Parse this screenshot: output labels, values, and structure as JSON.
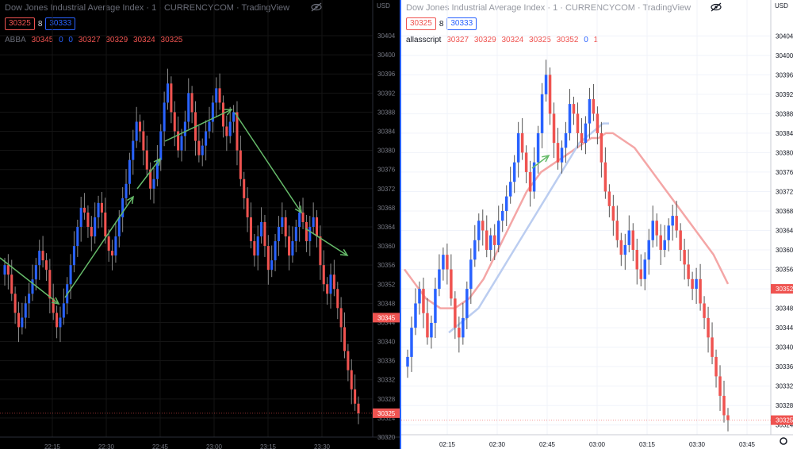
{
  "panes": [
    {
      "title": "Dow Jones Industrial Average Index · 1 · CURRENCYCOM · TradingView",
      "price_box_sell": "30325",
      "spread": "8",
      "price_box_buy": "30333",
      "study_name": "ABBA",
      "study_values": [
        "30345",
        "0",
        "0",
        "30327",
        "30329",
        "30324",
        "30325"
      ],
      "axis_unit": "USD",
      "last_price_label": "30345",
      "current_price_label": "30325",
      "theme": "dark"
    },
    {
      "title": "Dow Jones Industrial Average Index · 1 · CURRENCYCOM · TradingView",
      "price_box_sell": "30325",
      "spread": "8",
      "price_box_buy": "30333",
      "study_name": "allasscript",
      "study_values": [
        "30327",
        "30329",
        "30324",
        "30325",
        "30352",
        "0",
        "1"
      ],
      "axis_unit": "USD",
      "last_price_label": "30352",
      "current_price_label": "30325",
      "theme": "light"
    }
  ],
  "colors": {
    "up": "#2962ff",
    "down": "#ef5350",
    "light_up": "#2962ff",
    "arrow": "#66bb6a"
  },
  "chart_data": [
    {
      "type": "candlestick",
      "title": "Dow Jones Industrial Average Index · 1 · CURRENCYCOM · TradingView",
      "ylabel": "USD",
      "y_ticks": [
        30320,
        30324,
        30328,
        30332,
        30336,
        30340,
        30344,
        30348,
        30352,
        30356,
        30360,
        30364,
        30368,
        30372,
        30376,
        30380,
        30384,
        30388,
        30392,
        30396,
        30400,
        30404
      ],
      "x_ticks": [
        "22:15",
        "22:30",
        "22:45",
        "23:00",
        "23:15",
        "23:30"
      ],
      "ylim": [
        30320,
        30406
      ],
      "closes": [
        30356,
        30354,
        30350,
        30346,
        30343,
        30345,
        30348,
        30350,
        30353,
        30356,
        30359,
        30357,
        30355,
        30349,
        30346,
        30343,
        30345,
        30348,
        30352,
        30356,
        30360,
        30364,
        30368,
        30367,
        30364,
        30362,
        30366,
        30369,
        30367,
        30362,
        30359,
        30358,
        30362,
        30366,
        30370,
        30373,
        30378,
        30382,
        30386,
        30384,
        30380,
        30376,
        30372,
        30374,
        30378,
        30384,
        30390,
        30394,
        30388,
        30384,
        30380,
        30383,
        30386,
        30392,
        30388,
        30382,
        30379,
        30381,
        30384,
        30386,
        30390,
        30393,
        30390,
        30385,
        30383,
        30386,
        30388,
        30380,
        30374,
        30370,
        30366,
        30361,
        30358,
        30362,
        30365,
        30360,
        30355,
        30357,
        30361,
        30364,
        30366,
        30362,
        30358,
        30361,
        30364,
        30367,
        30365,
        30361,
        30364,
        30366,
        30362,
        30356,
        30352,
        30350,
        30354,
        30351,
        30347,
        30343,
        30338,
        30334,
        30330,
        30327,
        30325
      ],
      "annotations": [
        "green trend arrows"
      ]
    },
    {
      "type": "candlestick",
      "title": "Dow Jones Industrial Average Index · 1 · CURRENCYCOM · TradingView",
      "ylabel": "USD",
      "y_ticks": [
        30324,
        30328,
        30332,
        30336,
        30340,
        30344,
        30348,
        30352,
        30356,
        30360,
        30364,
        30368,
        30372,
        30376,
        30380,
        30384,
        30388,
        30392,
        30396,
        30400,
        30404
      ],
      "x_ticks": [
        "02:15",
        "02:30",
        "02:45",
        "03:00",
        "03:15",
        "03:30",
        "03:45"
      ],
      "ylim": [
        30322,
        30406
      ],
      "closes": [
        30338,
        30344,
        30349,
        30352,
        30347,
        30342,
        30345,
        30352,
        30356,
        30359,
        30356,
        30350,
        30344,
        30342,
        30346,
        30352,
        30358,
        30362,
        30366,
        30364,
        30360,
        30363,
        30361,
        30366,
        30368,
        30371,
        30374,
        30378,
        30384,
        30380,
        30376,
        30372,
        30378,
        30384,
        30392,
        30396,
        30388,
        30382,
        30378,
        30381,
        30384,
        30390,
        30388,
        30384,
        30382,
        30386,
        30391,
        30388,
        30384,
        30378,
        30372,
        30369,
        30366,
        30362,
        30359,
        30361,
        30364,
        30360,
        30356,
        30354,
        30358,
        30362,
        30366,
        30363,
        30360,
        30362,
        30365,
        30367,
        30364,
        30360,
        30357,
        30354,
        30352,
        30354,
        30349,
        30346,
        30342,
        30338,
        30334,
        30330,
        30326,
        30325
      ],
      "series": [
        {
          "name": "",
          "color": "#f4a6a6",
          "values": [
            30356,
            30354,
            30352,
            30350,
            30349,
            30348,
            30348,
            30348,
            30349,
            30350,
            30352,
            30354,
            30357,
            30360,
            30363,
            30366,
            30369,
            30372,
            30374,
            30376,
            30377,
            30378,
            30379,
            30380,
            30381,
            30382,
            30383,
            30383,
            30384,
            30384,
            30383,
            30382,
            30381,
            30379,
            30377,
            30375,
            30373,
            30371,
            30369,
            30367,
            30365,
            30363,
            30361,
            30359,
            30356,
            30353
          ]
        },
        {
          "name": "",
          "color": "#bbcdf0",
          "values": [
            30343,
            30344,
            30345,
            30346,
            30347,
            30348,
            30350,
            30352,
            30354,
            30356,
            30358,
            30360,
            30362,
            30364,
            30366,
            30368,
            30370,
            30372,
            30374,
            30376,
            30378,
            30380,
            30382,
            30383,
            30384,
            30385,
            30386,
            30386
          ]
        }
      ],
      "annotations": [
        "green trend arrow"
      ]
    }
  ]
}
